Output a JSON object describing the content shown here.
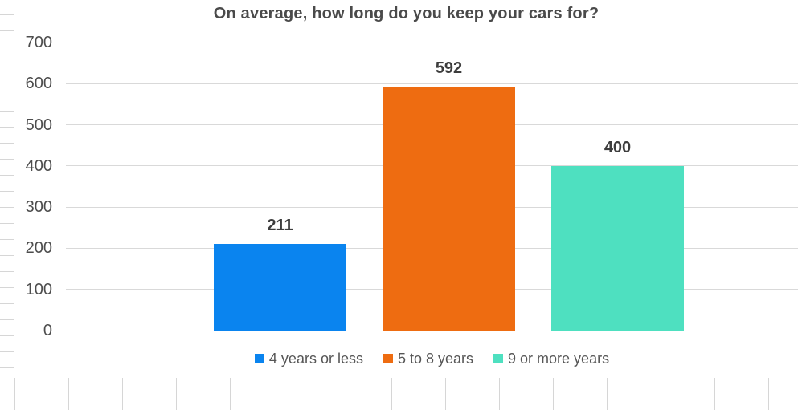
{
  "chart_data": {
    "type": "bar",
    "title": "On average, how long do you keep your cars for?",
    "categories": [
      "4 years or less",
      "5 to 8 years",
      "9 or more years"
    ],
    "values": [
      211,
      592,
      400
    ],
    "value_labels": [
      "211",
      "592",
      "400"
    ],
    "colors": [
      "#0a84ef",
      "#ee6c11",
      "#4ee0c0"
    ],
    "xlabel": "",
    "ylabel": "",
    "ylim": [
      0,
      700
    ],
    "yticks": [
      0,
      100,
      200,
      300,
      400,
      500,
      600,
      700
    ],
    "grid": "horizontal",
    "gridline_color": "#d9d9d9",
    "legend_position": "bottom",
    "legend_entries": [
      "4 years or less",
      "5 to 8 years",
      "9 or more years"
    ],
    "text_color": "#4a4a4a"
  },
  "background": {
    "context": "spreadsheet-cells",
    "gridline_color": "#d6d6d6"
  }
}
